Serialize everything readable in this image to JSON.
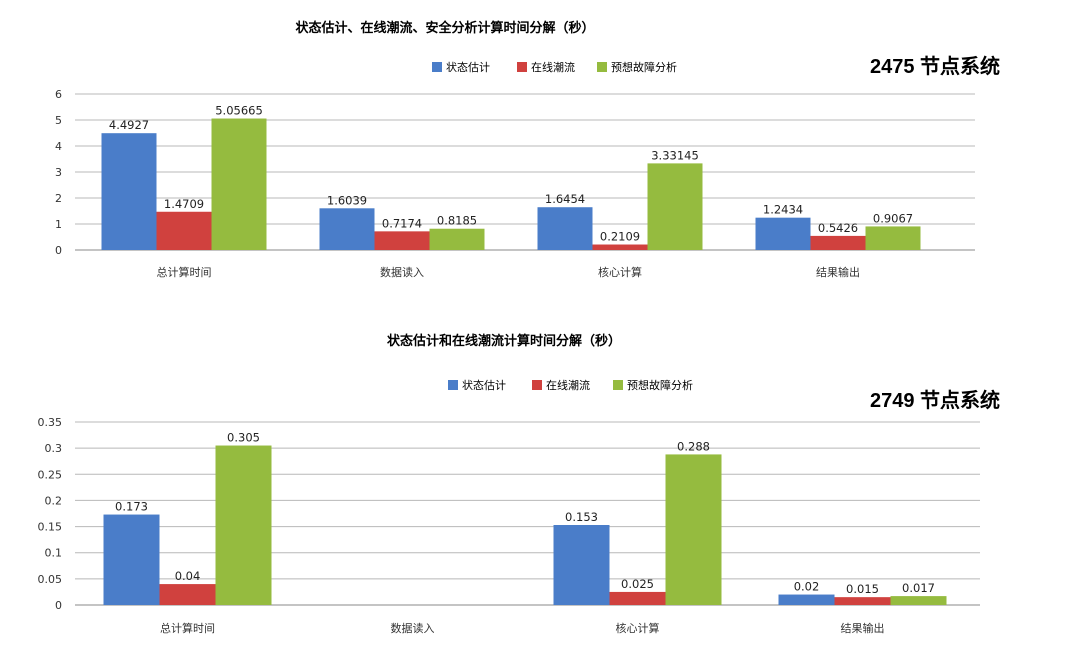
{
  "colors": {
    "series": [
      "#4a7dc9",
      "#d0413e",
      "#95bb3f"
    ],
    "grid": "#b8b8b8",
    "axis": "#888888"
  },
  "chart_data": [
    {
      "type": "bar",
      "title": "状态估计、在线潮流、安全分析计算时间分解（秒）",
      "system_label": "2475 节点系统",
      "categories": [
        "总计算时间",
        "数据读入",
        "核心计算",
        "结果输出"
      ],
      "series": [
        {
          "name": "状态估计",
          "values": [
            4.4927,
            1.6039,
            1.6454,
            1.2434
          ]
        },
        {
          "name": "在线潮流",
          "values": [
            1.4709,
            0.7174,
            0.2109,
            0.5426
          ]
        },
        {
          "name": "预想故障分析",
          "values": [
            5.05665,
            0.8185,
            3.33145,
            0.9067
          ]
        }
      ],
      "data_labels": [
        [
          "4.4927",
          "1.6039",
          "1.6454",
          "1.2434"
        ],
        [
          "1.4709",
          "0.7174",
          "0.2109",
          "0.5426"
        ],
        [
          "5.05665",
          "0.8185",
          "3.33145",
          "0.9067"
        ]
      ],
      "yticks": [
        "0",
        "1",
        "2",
        "3",
        "4",
        "5",
        "6"
      ],
      "ylim": [
        0,
        6
      ],
      "grid": true,
      "legend": "top"
    },
    {
      "type": "bar",
      "title": "状态估计和在线潮流计算时间分解（秒）",
      "system_label": "2749 节点系统",
      "categories": [
        "总计算时间",
        "数据读入",
        "核心计算",
        "结果输出"
      ],
      "series": [
        {
          "name": "状态估计",
          "values": [
            0.173,
            null,
            0.153,
            0.02
          ]
        },
        {
          "name": "在线潮流",
          "values": [
            0.04,
            null,
            0.025,
            0.015
          ]
        },
        {
          "name": "预想故障分析",
          "values": [
            0.305,
            null,
            0.288,
            0.017
          ]
        }
      ],
      "data_labels": [
        [
          "0.173",
          "",
          "0.153",
          "0.02"
        ],
        [
          "0.04",
          "",
          "0.025",
          "0.015"
        ],
        [
          "0.305",
          "",
          "0.288",
          "0.017"
        ]
      ],
      "yticks": [
        "0",
        "0.05",
        "0.1",
        "0.15",
        "0.2",
        "0.25",
        "0.3",
        "0.35"
      ],
      "ylim": [
        0,
        0.35
      ],
      "grid": true,
      "legend": "top"
    }
  ]
}
